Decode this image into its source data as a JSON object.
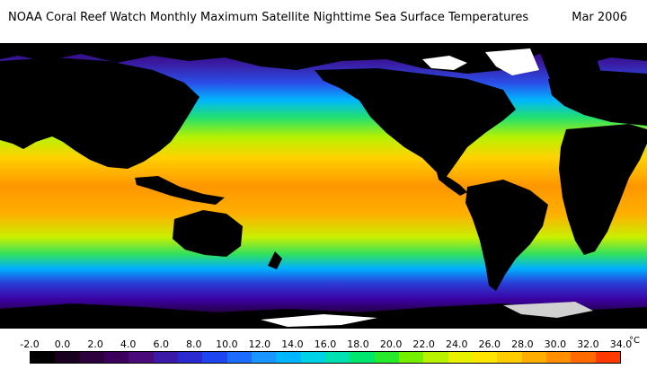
{
  "title": {
    "main": "NOAA Coral Reef Watch Monthly Maximum Satellite Nighttime Sea Surface Temperatures",
    "date": "Mar 2006"
  },
  "legend": {
    "ticks": [
      "-2.0",
      "0.0",
      "2.0",
      "4.0",
      "6.0",
      "8.0",
      "10.0",
      "12.0",
      "14.0",
      "16.0",
      "18.0",
      "20.0",
      "22.0",
      "24.0",
      "26.0",
      "28.0",
      "30.0",
      "32.0",
      "34.0"
    ],
    "unit": "°C",
    "min": -2.0,
    "max": 34.0,
    "colors": [
      "#000000",
      "#1a001f",
      "#2d003e",
      "#3b005a",
      "#4b0a7a",
      "#3c1aa8",
      "#2b2ad0",
      "#1d45f0",
      "#1b6cff",
      "#1a94ff",
      "#00b6ff",
      "#00d2e6",
      "#00e0b0",
      "#00e66e",
      "#27ea2a",
      "#74ef00",
      "#b8f200",
      "#e8f200",
      "#ffe600",
      "#ffcc00",
      "#ffae00",
      "#ff8e00",
      "#ff6a00",
      "#ff3a00"
    ]
  },
  "map": {
    "land_color": "#000000",
    "ice_color": "#ffffff"
  }
}
